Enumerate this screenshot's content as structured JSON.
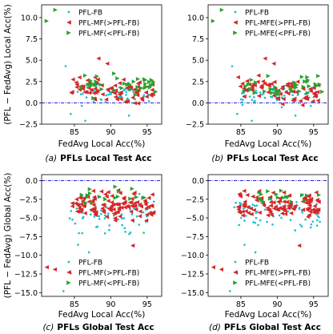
{
  "figure": {
    "ylabel_shared": "(PFL − FedAvg) Local Acc(%)",
    "ylabel_shared_bottom": "(PFL − FedAvg) Global Acc(%)",
    "colors": {
      "fb": "#17becf",
      "gt": "#d62728",
      "lt": "#2ca02c",
      "baseline": "#0000cc"
    }
  },
  "chart_data": [
    {
      "id": "a",
      "type": "scatter",
      "caption_prefix": "(a)",
      "caption_bold": "PFLs Local Test Acc",
      "xlabel": "FedAvg Local Acc(%)",
      "ylabel": "(PFL − FedAvg) Local Acc(%)",
      "xlim": [
        80.5,
        97
      ],
      "ylim": [
        -2.5,
        11.5
      ],
      "xticks": [
        85,
        90,
        95
      ],
      "yticks": [
        -2.5,
        0.0,
        2.5,
        5.0,
        7.5,
        10.0
      ],
      "ytick_labels": [
        "−2.5",
        "0.0",
        "2.5",
        "5.0",
        "7.5",
        "10.0"
      ],
      "baseline_y": 0,
      "legend": [
        "PFL-FB",
        "PFL-MF(>PFL-FB)",
        "PFL-MF(<PFL-FB)"
      ],
      "legend_pos": "top-right"
    },
    {
      "id": "b",
      "type": "scatter",
      "caption_prefix": "(b)",
      "caption_bold": "PFLs Local Test Acc",
      "xlabel": "FedAvg Local Acc(%)",
      "ylabel": "",
      "xlim": [
        80.5,
        97
      ],
      "ylim": [
        -2.5,
        11.5
      ],
      "xticks": [
        85,
        90,
        95
      ],
      "yticks": [
        -2.5,
        0.0,
        2.5,
        5.0,
        7.5,
        10.0
      ],
      "ytick_labels": [
        "−2.5",
        "0.0",
        "2.5",
        "5.0",
        "7.5",
        "10.0"
      ],
      "baseline_y": 0,
      "legend": [
        "PFL-FB",
        "PFL-MFE(>PFL-FB)",
        "PFL-MFE(<PFL-FB)"
      ],
      "legend_pos": "top-right"
    },
    {
      "id": "c",
      "type": "scatter",
      "caption_prefix": "(c)",
      "caption_bold": "PFLs Global Test Acc",
      "xlabel": "FedAvg Local Acc(%)",
      "ylabel": "(PFL − FedAvg) Global Acc(%)",
      "xlim": [
        80.5,
        97
      ],
      "ylim": [
        -15.5,
        0.8
      ],
      "xticks": [
        85,
        90,
        95
      ],
      "yticks": [
        -15.0,
        -12.5,
        -10.0,
        -7.5,
        -5.0,
        -2.5,
        0.0
      ],
      "ytick_labels": [
        "−15.0",
        "−12.5",
        "−10.0",
        "−7.5",
        "−5.0",
        "−2.5",
        "0.0"
      ],
      "baseline_y": 0,
      "legend": [
        "PFL-FB",
        "PFL-MF(>PFL-FB)",
        "PFL-MF(<PFL-FB)"
      ],
      "legend_pos": "bottom-right"
    },
    {
      "id": "d",
      "type": "scatter",
      "caption_prefix": "(d)",
      "caption_bold": "PFLs Global Test Acc",
      "xlabel": "FedAvg Local Acc(%)",
      "ylabel": "",
      "xlim": [
        80.5,
        97
      ],
      "ylim": [
        -15.5,
        0.8
      ],
      "xticks": [
        85,
        90,
        95
      ],
      "yticks": [
        -15.0,
        -12.5,
        -10.0,
        -7.5,
        -5.0,
        -2.5,
        0.0
      ],
      "ytick_labels": [
        "−15.0",
        "−12.5",
        "−10.0",
        "−7.5",
        "−5.0",
        "−2.5",
        "0.0"
      ],
      "baseline_y": 0,
      "legend": [
        "PFL-FB",
        "PFL-MFE(>PFL-FB)",
        "PFL-MFE(<PFL-FB)"
      ],
      "legend_pos": "bottom-right"
    }
  ]
}
